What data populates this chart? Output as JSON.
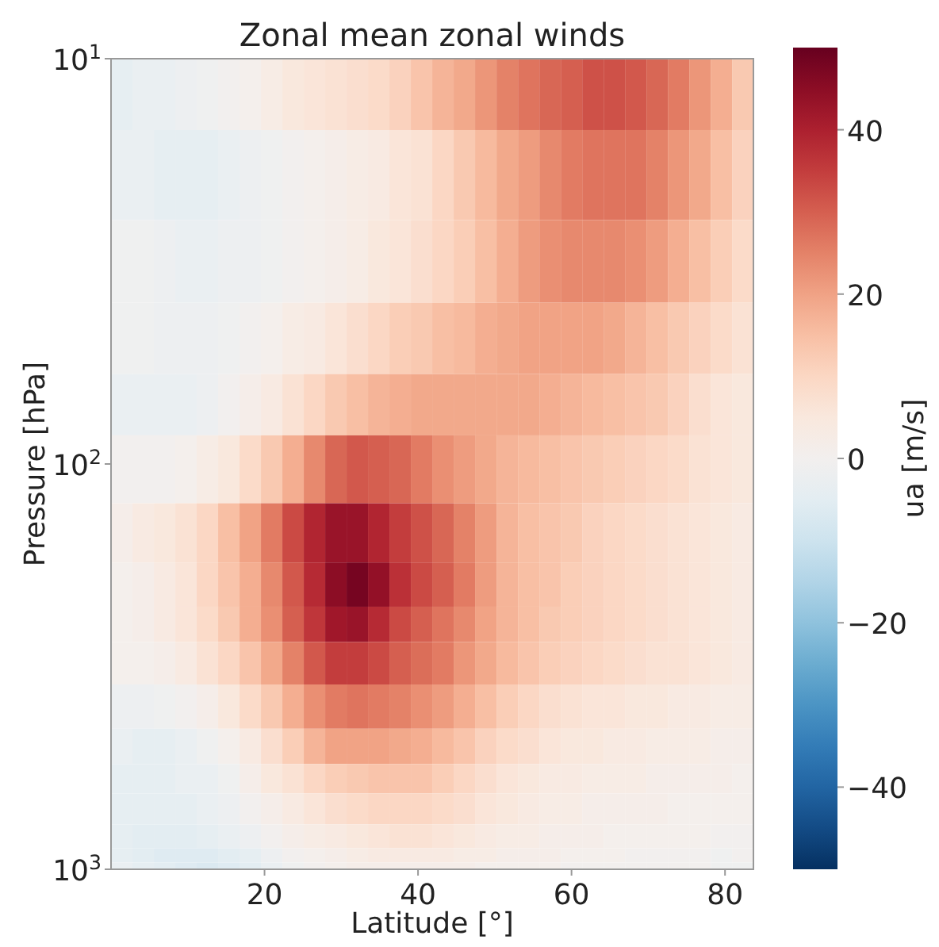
{
  "chart_data": {
    "type": "heatmap",
    "title": "Zonal mean zonal winds",
    "xlabel": "Latitude [°]",
    "ylabel": "Pressure [hPa]",
    "clabel": "ua [m/s]",
    "log": "y",
    "x": [
      1.4,
      4.19,
      6.98,
      9.77,
      12.56,
      15.35,
      18.14,
      20.93,
      23.72,
      26.51,
      29.3,
      32.09,
      34.88,
      37.67,
      40.46,
      43.25,
      46.04,
      48.83,
      51.63,
      54.42,
      57.21,
      60.0,
      62.79,
      65.58,
      68.37,
      71.16,
      73.95,
      76.74,
      79.53,
      82.31
    ],
    "y": [
      10,
      20,
      30,
      50,
      70,
      100,
      150,
      200,
      250,
      300,
      400,
      500,
      600,
      700,
      850,
      925,
      1000
    ],
    "xlim": [
      0,
      83.7
    ],
    "xticks": [
      20,
      40,
      60,
      80
    ],
    "ylim": [
      1000,
      10
    ],
    "yticks": [
      {
        "value": 10,
        "label": "10$^{1}$"
      },
      {
        "value": 100,
        "label": "10$^{2}$"
      },
      {
        "value": 1000,
        "label": "10$^{3}$"
      }
    ],
    "clim": [
      -50,
      50
    ],
    "cticks": [
      -40,
      -20,
      0,
      20,
      40
    ],
    "cells": [
      [
        -4,
        -3,
        -3,
        -2,
        -1,
        0,
        1,
        3,
        5,
        6,
        7,
        8,
        9,
        11,
        14,
        17,
        19,
        22,
        25,
        27,
        29,
        30,
        32,
        32,
        31,
        29,
        26,
        22,
        18,
        13
      ],
      [
        -3,
        -3,
        -4,
        -4,
        -4,
        -3,
        -2,
        -1,
        0,
        1,
        2,
        3,
        4,
        6,
        7,
        10,
        13,
        16,
        19,
        21,
        24,
        26,
        27,
        27,
        27,
        25,
        22,
        19,
        15,
        11
      ],
      [
        -1,
        -1,
        -2,
        -3,
        -3,
        -2,
        -2,
        -1,
        0,
        1,
        2,
        3,
        5,
        6,
        8,
        10,
        12,
        15,
        18,
        21,
        23,
        24,
        24,
        24,
        23,
        21,
        18,
        15,
        12,
        9
      ],
      [
        -1,
        -1,
        -2,
        -2,
        -2,
        -1,
        0,
        1,
        3,
        4,
        6,
        8,
        10,
        12,
        13,
        15,
        16,
        18,
        19,
        20,
        20,
        20,
        20,
        19,
        17,
        15,
        13,
        11,
        9,
        7
      ],
      [
        -3,
        -3,
        -3,
        -3,
        -2,
        0,
        2,
        4,
        7,
        10,
        13,
        15,
        17,
        18,
        19,
        19,
        19,
        19,
        19,
        19,
        18,
        17,
        16,
        15,
        14,
        13,
        11,
        8,
        6,
        5
      ],
      [
        0,
        0,
        0,
        1,
        3,
        5,
        9,
        13,
        18,
        24,
        29,
        31,
        30,
        29,
        26,
        23,
        21,
        19,
        17,
        16,
        15,
        14,
        13,
        12,
        11,
        10,
        9,
        7,
        6,
        5
      ],
      [
        2,
        4,
        5,
        7,
        10,
        15,
        20,
        26,
        33,
        39,
        43,
        43,
        39,
        35,
        32,
        29,
        25,
        21,
        17,
        15,
        14,
        13,
        11,
        10,
        9,
        8,
        7,
        6,
        5,
        4
      ],
      [
        1,
        2,
        4,
        6,
        10,
        14,
        18,
        24,
        31,
        38,
        45,
        48,
        44,
        37,
        33,
        30,
        26,
        21,
        17,
        15,
        14,
        12,
        11,
        10,
        9,
        8,
        7,
        6,
        5,
        4
      ],
      [
        1,
        2,
        4,
        6,
        9,
        13,
        18,
        23,
        30,
        36,
        42,
        43,
        38,
        33,
        30,
        27,
        24,
        20,
        17,
        15,
        13,
        12,
        11,
        10,
        9,
        8,
        7,
        6,
        5,
        4
      ],
      [
        1,
        1,
        2,
        4,
        7,
        10,
        14,
        19,
        25,
        31,
        35,
        35,
        33,
        30,
        28,
        26,
        22,
        19,
        16,
        14,
        12,
        11,
        10,
        9,
        8,
        7,
        7,
        6,
        5,
        4
      ],
      [
        -2,
        -2,
        -1,
        0,
        2,
        5,
        9,
        13,
        18,
        23,
        26,
        27,
        26,
        25,
        23,
        21,
        18,
        15,
        12,
        10,
        8,
        7,
        6,
        6,
        5,
        5,
        4,
        4,
        3,
        3
      ],
      [
        -3,
        -4,
        -4,
        -3,
        -1,
        1,
        4,
        8,
        12,
        17,
        20,
        20,
        20,
        19,
        18,
        16,
        14,
        11,
        9,
        8,
        6,
        5,
        5,
        4,
        4,
        3,
        3,
        3,
        2,
        2
      ],
      [
        -4,
        -4,
        -4,
        -3,
        -3,
        -1,
        2,
        5,
        7,
        10,
        12,
        13,
        14,
        14,
        14,
        12,
        10,
        8,
        6,
        5,
        4,
        4,
        3,
        3,
        3,
        2,
        2,
        2,
        2,
        1
      ],
      [
        -4,
        -4,
        -4,
        -4,
        -3,
        -2,
        0,
        2,
        4,
        6,
        8,
        9,
        10,
        10,
        10,
        9,
        8,
        6,
        5,
        4,
        3,
        3,
        2,
        2,
        2,
        2,
        1,
        1,
        1,
        1
      ],
      [
        -4,
        -5,
        -5,
        -5,
        -4,
        -3,
        -2,
        0,
        2,
        3,
        4,
        5,
        6,
        7,
        7,
        6,
        5,
        4,
        3,
        3,
        2,
        2,
        2,
        1,
        1,
        1,
        1,
        1,
        0,
        0
      ],
      [
        -4,
        -5,
        -6,
        -6,
        -6,
        -5,
        -4,
        -2,
        0,
        1,
        2,
        3,
        4,
        4,
        4,
        4,
        3,
        3,
        2,
        2,
        2,
        1,
        1,
        1,
        0,
        0,
        0,
        0,
        -1,
        0
      ],
      [
        -3,
        -4,
        -5,
        -6,
        -7,
        -6,
        -5,
        -3,
        -1,
        0,
        1,
        2,
        2,
        2,
        2,
        2,
        2,
        1,
        1,
        1,
        1,
        0,
        0,
        0,
        0,
        0,
        0,
        0,
        -1,
        -1
      ]
    ]
  }
}
